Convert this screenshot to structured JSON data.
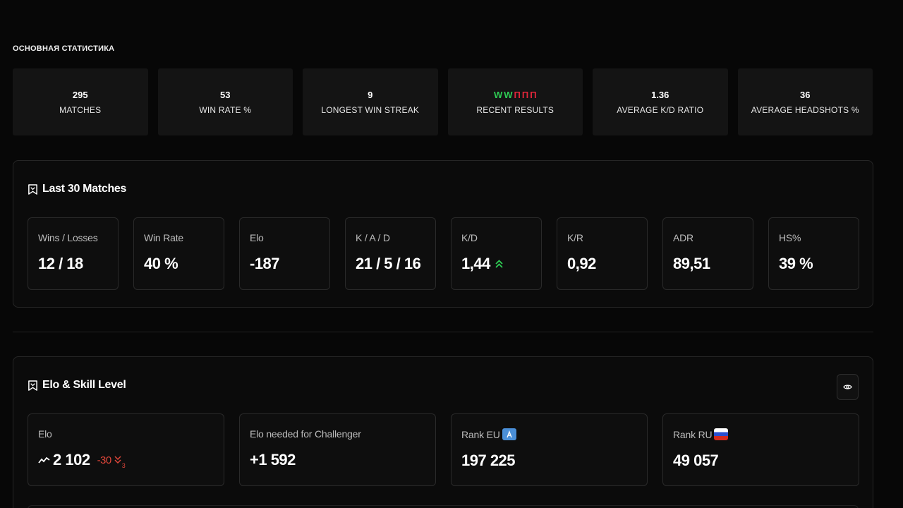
{
  "overview": {
    "title": "ОСНОВНАЯ СТАТИСТИКА",
    "tiles": [
      {
        "value": "295",
        "label": "MATCHES"
      },
      {
        "value": "53",
        "label": "WIN RATE %"
      },
      {
        "value": "9",
        "label": "LONGEST WIN STREAK"
      },
      {
        "results": [
          "W",
          "W",
          "П",
          "П",
          "П"
        ],
        "label": "RECENT RESULTS"
      },
      {
        "value": "1.36",
        "label": "AVERAGE K/D RATIO"
      },
      {
        "value": "36",
        "label": "AVERAGE HEADSHOTS %"
      }
    ],
    "colors": {
      "win": "#2ecc54",
      "loss": "#e0263a"
    }
  },
  "last30": {
    "title": "Last 30 Matches",
    "stats": [
      {
        "label": "Wins / Losses",
        "value": "12 / 18"
      },
      {
        "label": "Win Rate",
        "value": "40 %"
      },
      {
        "label": "Elo",
        "value": "-187"
      },
      {
        "label": "K / A / D",
        "value": "21 / 5 / 16"
      },
      {
        "label": "K/D",
        "value": "1,44",
        "trend": "up",
        "trend_icon": "double-chevron-up-icon"
      },
      {
        "label": "K/R",
        "value": "0,92"
      },
      {
        "label": "ADR",
        "value": "89,51"
      },
      {
        "label": "HS%",
        "value": "39 %"
      }
    ]
  },
  "elo": {
    "title": "Elo & Skill Level",
    "cards": [
      {
        "label": "Elo",
        "value": "2 102",
        "change": "-30",
        "change_sub": "3",
        "change_color": "#e0463a"
      },
      {
        "label": "Elo needed for Challenger",
        "value": "+1 592"
      },
      {
        "label": "Rank EU",
        "value": "197 225",
        "badge_icon": "eu-region-icon"
      },
      {
        "label": "Rank RU",
        "value": "49 057",
        "badge_icon": "russia-flag-icon"
      }
    ]
  }
}
